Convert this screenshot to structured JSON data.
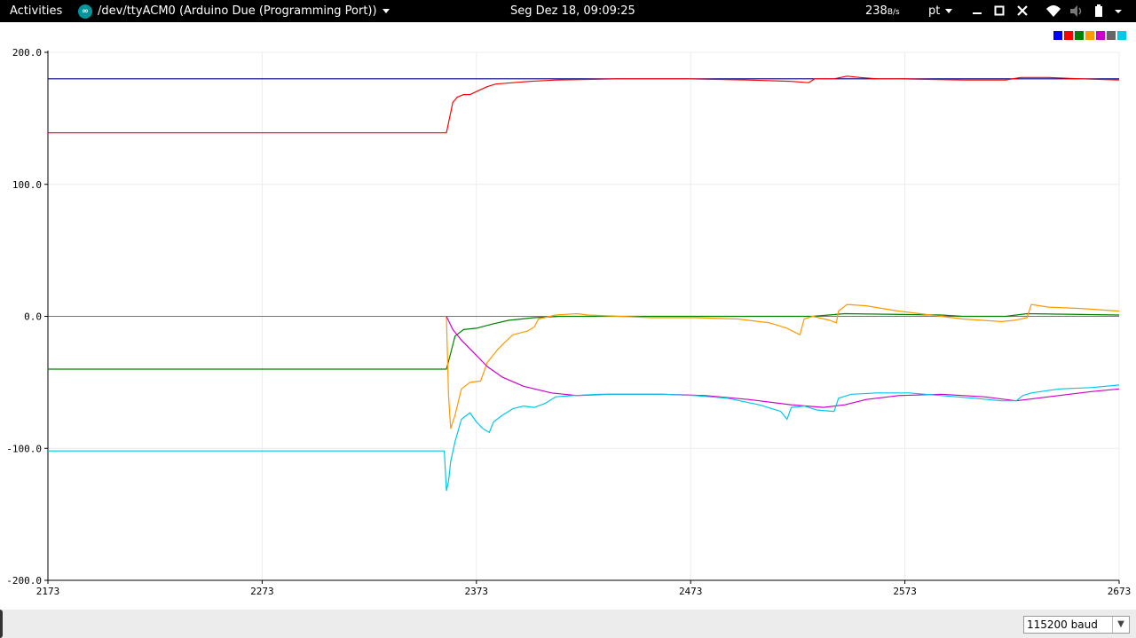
{
  "topbar": {
    "activities": "Activities",
    "app_title": "/dev/ttyACM0 (Arduino Due (Programming Port))",
    "clock": "Seg Dez 18, 09:09:25",
    "net_rate_value": "238",
    "net_rate_unit": "B/s",
    "language": "pt",
    "tray_icons": [
      "minimize-icon",
      "maximize-icon",
      "close-icon",
      "wifi-icon",
      "volume-icon",
      "battery-icon",
      "system-menu-caret-icon"
    ]
  },
  "bottombar": {
    "baud_rate": "115200 baud"
  },
  "legend_colors": [
    "#0000ff",
    "#ff0000",
    "#008000",
    "#ff9900",
    "#cc00cc",
    "#666666",
    "#00c8e8"
  ],
  "chart_data": {
    "type": "line",
    "title": "",
    "xlabel": "",
    "ylabel": "",
    "xlim": [
      2173,
      2673
    ],
    "ylim": [
      -200,
      200
    ],
    "x_ticks": [
      "2173",
      "2273",
      "2373",
      "2473",
      "2573",
      "2673"
    ],
    "y_ticks": [
      "200.0",
      "100.0",
      "0.0",
      "-100.0",
      "-200.0"
    ],
    "grid": true,
    "legend": "top-right",
    "series": [
      {
        "color": "#000080",
        "points": [
          [
            2173,
            180
          ],
          [
            2673,
            180
          ]
        ]
      },
      {
        "color": "#ff0000",
        "points": [
          [
            2173,
            139
          ],
          [
            2357,
            139
          ],
          [
            2359,
            139
          ],
          [
            2362,
            162
          ],
          [
            2364,
            166
          ],
          [
            2367,
            168
          ],
          [
            2370,
            168
          ],
          [
            2374,
            171
          ],
          [
            2378,
            174
          ],
          [
            2382,
            176
          ],
          [
            2390,
            177
          ],
          [
            2398,
            178
          ],
          [
            2410,
            179
          ],
          [
            2440,
            180
          ],
          [
            2470,
            180
          ],
          [
            2500,
            179
          ],
          [
            2520,
            178
          ],
          [
            2528,
            177
          ],
          [
            2531,
            180
          ],
          [
            2540,
            180
          ],
          [
            2546,
            182
          ],
          [
            2552,
            181
          ],
          [
            2560,
            180
          ],
          [
            2570,
            180
          ],
          [
            2600,
            179
          ],
          [
            2620,
            179
          ],
          [
            2627,
            181
          ],
          [
            2640,
            181
          ],
          [
            2655,
            180
          ],
          [
            2673,
            179
          ]
        ]
      },
      {
        "color": "#008000",
        "points": [
          [
            2173,
            -40
          ],
          [
            2357,
            -40
          ],
          [
            2359,
            -40
          ],
          [
            2361,
            -28
          ],
          [
            2363,
            -15
          ],
          [
            2367,
            -10
          ],
          [
            2373,
            -9
          ],
          [
            2380,
            -6
          ],
          [
            2388,
            -3
          ],
          [
            2400,
            -1
          ],
          [
            2412,
            0
          ],
          [
            2440,
            0
          ],
          [
            2520,
            0
          ],
          [
            2530,
            0
          ],
          [
            2545,
            2
          ],
          [
            2590,
            1
          ],
          [
            2600,
            0
          ],
          [
            2620,
            0
          ],
          [
            2630,
            2
          ],
          [
            2673,
            1
          ]
        ]
      },
      {
        "color": "#ff9900",
        "points": [
          [
            2359,
            0
          ],
          [
            2360,
            -60
          ],
          [
            2361,
            -85
          ],
          [
            2363,
            -75
          ],
          [
            2366,
            -55
          ],
          [
            2370,
            -50
          ],
          [
            2375,
            -49
          ],
          [
            2378,
            -35
          ],
          [
            2383,
            -25
          ],
          [
            2386,
            -20
          ],
          [
            2390,
            -14
          ],
          [
            2397,
            -11
          ],
          [
            2400,
            -8
          ],
          [
            2402,
            -2
          ],
          [
            2410,
            1
          ],
          [
            2420,
            2
          ],
          [
            2425,
            1
          ],
          [
            2455,
            -1
          ],
          [
            2475,
            -1
          ],
          [
            2495,
            -2
          ],
          [
            2510,
            -5
          ],
          [
            2518,
            -9
          ],
          [
            2524,
            -14
          ],
          [
            2526,
            -2
          ],
          [
            2530,
            0
          ],
          [
            2538,
            -3
          ],
          [
            2541,
            -5
          ],
          [
            2542,
            4
          ],
          [
            2546,
            9
          ],
          [
            2555,
            8
          ],
          [
            2570,
            4
          ],
          [
            2580,
            2
          ],
          [
            2590,
            0
          ],
          [
            2600,
            -2
          ],
          [
            2618,
            -4
          ],
          [
            2624,
            -3
          ],
          [
            2630,
            -1
          ],
          [
            2632,
            9
          ],
          [
            2640,
            7
          ],
          [
            2655,
            6
          ],
          [
            2673,
            4
          ]
        ]
      },
      {
        "color": "#cc00cc",
        "points": [
          [
            2359,
            0
          ],
          [
            2362,
            -10
          ],
          [
            2366,
            -18
          ],
          [
            2372,
            -28
          ],
          [
            2378,
            -38
          ],
          [
            2385,
            -46
          ],
          [
            2395,
            -53
          ],
          [
            2408,
            -58
          ],
          [
            2420,
            -60
          ],
          [
            2435,
            -59
          ],
          [
            2460,
            -59
          ],
          [
            2480,
            -60
          ],
          [
            2500,
            -63
          ],
          [
            2520,
            -67
          ],
          [
            2535,
            -69
          ],
          [
            2545,
            -67
          ],
          [
            2555,
            -63
          ],
          [
            2570,
            -60
          ],
          [
            2590,
            -59
          ],
          [
            2610,
            -61
          ],
          [
            2625,
            -64
          ],
          [
            2640,
            -61
          ],
          [
            2660,
            -57
          ],
          [
            2673,
            -55
          ]
        ]
      },
      {
        "color": "#00c8e8",
        "points": [
          [
            2173,
            -102
          ],
          [
            2357,
            -102
          ],
          [
            2358,
            -102
          ],
          [
            2359,
            -132
          ],
          [
            2360,
            -125
          ],
          [
            2361,
            -110
          ],
          [
            2363,
            -95
          ],
          [
            2366,
            -78
          ],
          [
            2370,
            -73
          ],
          [
            2373,
            -80
          ],
          [
            2376,
            -85
          ],
          [
            2379,
            -88
          ],
          [
            2381,
            -80
          ],
          [
            2385,
            -75
          ],
          [
            2390,
            -70
          ],
          [
            2395,
            -68
          ],
          [
            2400,
            -69
          ],
          [
            2405,
            -66
          ],
          [
            2410,
            -61
          ],
          [
            2418,
            -60
          ],
          [
            2430,
            -59
          ],
          [
            2460,
            -59
          ],
          [
            2475,
            -60
          ],
          [
            2490,
            -62
          ],
          [
            2505,
            -67
          ],
          [
            2515,
            -72
          ],
          [
            2518,
            -78
          ],
          [
            2520,
            -69
          ],
          [
            2526,
            -68
          ],
          [
            2532,
            -71
          ],
          [
            2540,
            -72
          ],
          [
            2542,
            -62
          ],
          [
            2548,
            -59
          ],
          [
            2560,
            -58
          ],
          [
            2575,
            -58
          ],
          [
            2590,
            -60
          ],
          [
            2605,
            -62
          ],
          [
            2618,
            -64
          ],
          [
            2625,
            -64
          ],
          [
            2628,
            -60
          ],
          [
            2632,
            -58
          ],
          [
            2645,
            -55
          ],
          [
            2660,
            -54
          ],
          [
            2673,
            -52
          ]
        ]
      }
    ]
  }
}
